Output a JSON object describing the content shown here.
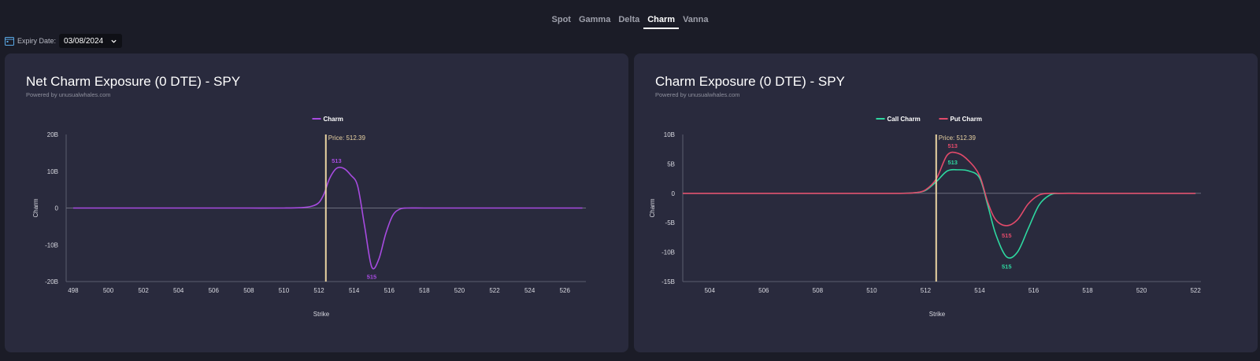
{
  "tabs": [
    {
      "label": "Spot",
      "active": false
    },
    {
      "label": "Gamma",
      "active": false
    },
    {
      "label": "Delta",
      "active": false
    },
    {
      "label": "Charm",
      "active": true
    },
    {
      "label": "Vanna",
      "active": false
    }
  ],
  "toolbar": {
    "calendar_icon": "calendar-icon",
    "expiry_label": "Expiry Date:",
    "expiry_value": "03/08/2024",
    "chevron_icon": "chevron-down-icon"
  },
  "colors": {
    "background": "#1b1c27",
    "panel": "#292a3d",
    "charm": "#a74be0",
    "call": "#2ed8a0",
    "put": "#e14a6a",
    "price_line": "#e9d3a2"
  },
  "chart_data": [
    {
      "type": "line",
      "title": "Net Charm Exposure (0 DTE) - SPY",
      "subtitle": "Powered by unusualwhales.com",
      "xlabel": "Strike",
      "ylabel": "Charm",
      "xlim": [
        497.6,
        527.2
      ],
      "ylim": [
        -20,
        20
      ],
      "x_ticks": [
        498,
        500,
        502,
        504,
        506,
        508,
        510,
        512,
        514,
        516,
        518,
        520,
        522,
        524,
        526
      ],
      "y_ticks": [
        {
          "value": 20,
          "label": "20B"
        },
        {
          "value": 10,
          "label": "10B"
        },
        {
          "value": 0,
          "label": "0"
        },
        {
          "value": -10,
          "label": "-10B"
        },
        {
          "value": -20,
          "label": "-20B"
        }
      ],
      "legend": "top-center",
      "grid": false,
      "price": {
        "value": 512.39,
        "label": "Price: 512.39"
      },
      "series": [
        {
          "name": "Charm",
          "color": "#a74be0",
          "x": [
            498,
            500,
            502,
            504,
            506,
            508,
            510,
            511,
            511.6,
            512,
            512.3,
            512.6,
            513,
            513.4,
            513.8,
            514.2,
            514.6,
            515,
            515.4,
            515.8,
            516.2,
            516.6,
            517,
            518,
            520,
            522,
            524,
            526,
            527
          ],
          "y": [
            0,
            0,
            0,
            0,
            0,
            0,
            0,
            0.1,
            0.5,
            1.5,
            4,
            8,
            10.8,
            10.8,
            9,
            6,
            -5,
            -16,
            -14,
            -7,
            -2,
            -0.3,
            0,
            0,
            0,
            0,
            0,
            0,
            0
          ],
          "labels": [
            {
              "x": 513,
              "y": 10.8,
              "text": "513",
              "pos": "above"
            },
            {
              "x": 515,
              "y": -16,
              "text": "515",
              "pos": "below"
            }
          ]
        }
      ]
    },
    {
      "type": "line",
      "title": "Charm Exposure (0 DTE) - SPY",
      "subtitle": "Powered by unusualwhales.com",
      "xlabel": "Strike",
      "ylabel": "Charm",
      "xlim": [
        503,
        522.2
      ],
      "ylim": [
        -15,
        10
      ],
      "x_ticks": [
        504,
        506,
        508,
        510,
        512,
        514,
        516,
        518,
        520,
        522
      ],
      "y_ticks": [
        {
          "value": 10,
          "label": "10B"
        },
        {
          "value": 5,
          "label": "5B"
        },
        {
          "value": 0,
          "label": "0"
        },
        {
          "value": -5,
          "label": "-5B"
        },
        {
          "value": -10,
          "label": "-10B"
        },
        {
          "value": -15,
          "label": "-15B"
        }
      ],
      "legend": "top-center",
      "grid": false,
      "price": {
        "value": 512.39,
        "label": "Price: 512.39"
      },
      "series": [
        {
          "name": "Call Charm",
          "color": "#2ed8a0",
          "x": [
            503,
            505,
            507,
            509,
            511,
            511.6,
            512,
            512.4,
            512.8,
            513.2,
            513.6,
            514,
            514.3,
            514.6,
            515,
            515.4,
            515.8,
            516.2,
            516.6,
            517,
            518,
            520,
            522
          ],
          "y": [
            0,
            0,
            0,
            0,
            0,
            0.1,
            0.5,
            2,
            3.8,
            4,
            3.8,
            2.6,
            -2,
            -7,
            -10.8,
            -10,
            -6,
            -2,
            -0.3,
            0,
            0,
            0,
            0
          ],
          "labels": [
            {
              "x": 513,
              "y": 4,
              "text": "513",
              "pos": "above"
            },
            {
              "x": 515,
              "y": -10.8,
              "text": "515",
              "pos": "below"
            }
          ]
        },
        {
          "name": "Put Charm",
          "color": "#e14a6a",
          "x": [
            503,
            505,
            507,
            509,
            511,
            511.6,
            512,
            512.4,
            512.8,
            513.2,
            513.6,
            514,
            514.3,
            514.6,
            515,
            515.4,
            515.8,
            516.2,
            516.6,
            517,
            518,
            520,
            522
          ],
          "y": [
            0,
            0,
            0,
            0,
            0,
            0.1,
            0.6,
            2.5,
            6.5,
            6.8,
            5.5,
            3,
            -1.5,
            -4.5,
            -5.5,
            -4.5,
            -1.8,
            -0.3,
            0,
            0,
            0,
            0,
            0
          ],
          "labels": [
            {
              "x": 513,
              "y": 6.8,
              "text": "513",
              "pos": "above"
            },
            {
              "x": 515,
              "y": -5.5,
              "text": "515",
              "pos": "below"
            }
          ]
        }
      ]
    }
  ]
}
